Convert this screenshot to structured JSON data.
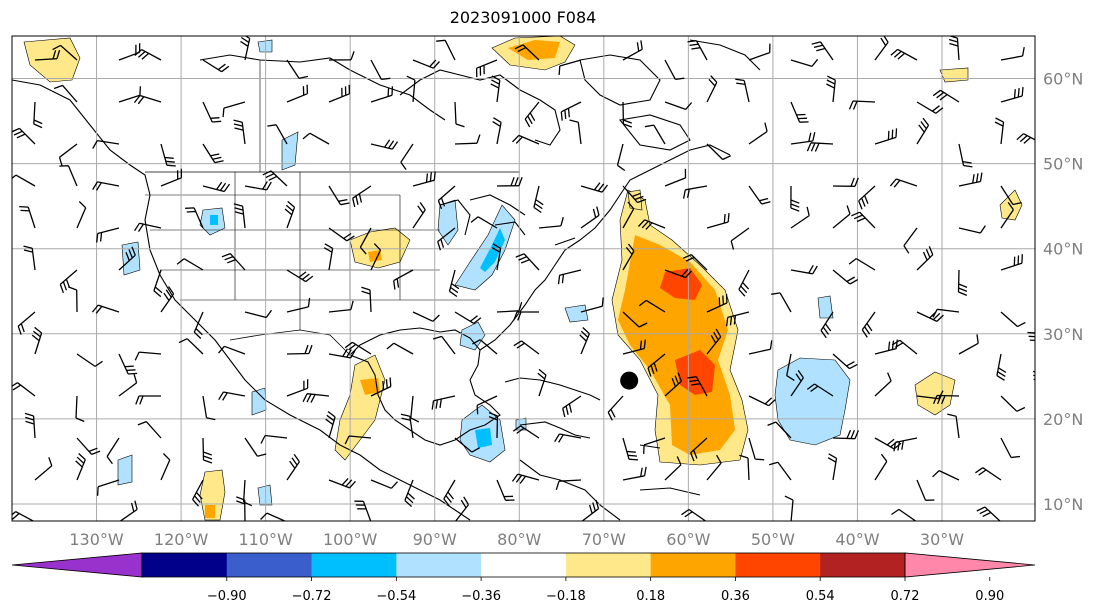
{
  "title": "2023091000 F084",
  "longitude_labels": [
    {
      "lon": -130,
      "label": "130°W"
    },
    {
      "lon": -120,
      "label": "120°W"
    },
    {
      "lon": -110,
      "label": "110°W"
    },
    {
      "lon": -100,
      "label": "100°W"
    },
    {
      "lon": -90,
      "label": "90°W"
    },
    {
      "lon": -80,
      "label": "80°W"
    },
    {
      "lon": -70,
      "label": "70°W"
    },
    {
      "lon": -60,
      "label": "60°W"
    },
    {
      "lon": -50,
      "label": "50°W"
    },
    {
      "lon": -40,
      "label": "40°W"
    },
    {
      "lon": -30,
      "label": "30°W"
    }
  ],
  "latitude_labels": [
    {
      "lat": 60,
      "label": "60°N"
    },
    {
      "lat": 50,
      "label": "50°N"
    },
    {
      "lat": 40,
      "label": "40°N"
    },
    {
      "lat": 30,
      "label": "30°N"
    },
    {
      "lat": 20,
      "label": "20°N"
    },
    {
      "lat": 10,
      "label": "10°N"
    }
  ],
  "map_extent": {
    "lon_min": -140,
    "lon_max": -19,
    "lat_min": 8,
    "lat_max": 65
  },
  "colorbar": {
    "tick_labels": [
      "−0.90",
      "−0.72",
      "−0.54",
      "−0.36",
      "−0.18",
      "0.18",
      "0.36",
      "0.54",
      "0.72",
      "0.90"
    ],
    "colors": [
      "#9932cc",
      "#00008b",
      "#3a5fcd",
      "#00bfff",
      "#b0e2ff",
      "#ffffff",
      "#ffe88a",
      "#ffa500",
      "#ff4500",
      "#b22222",
      "#ff88aa"
    ],
    "extend": "both"
  },
  "storm_marker": {
    "lon": -67,
    "lat": 24.5
  },
  "colors": {
    "grid": "#aaaaaa",
    "coast": "#000000"
  }
}
